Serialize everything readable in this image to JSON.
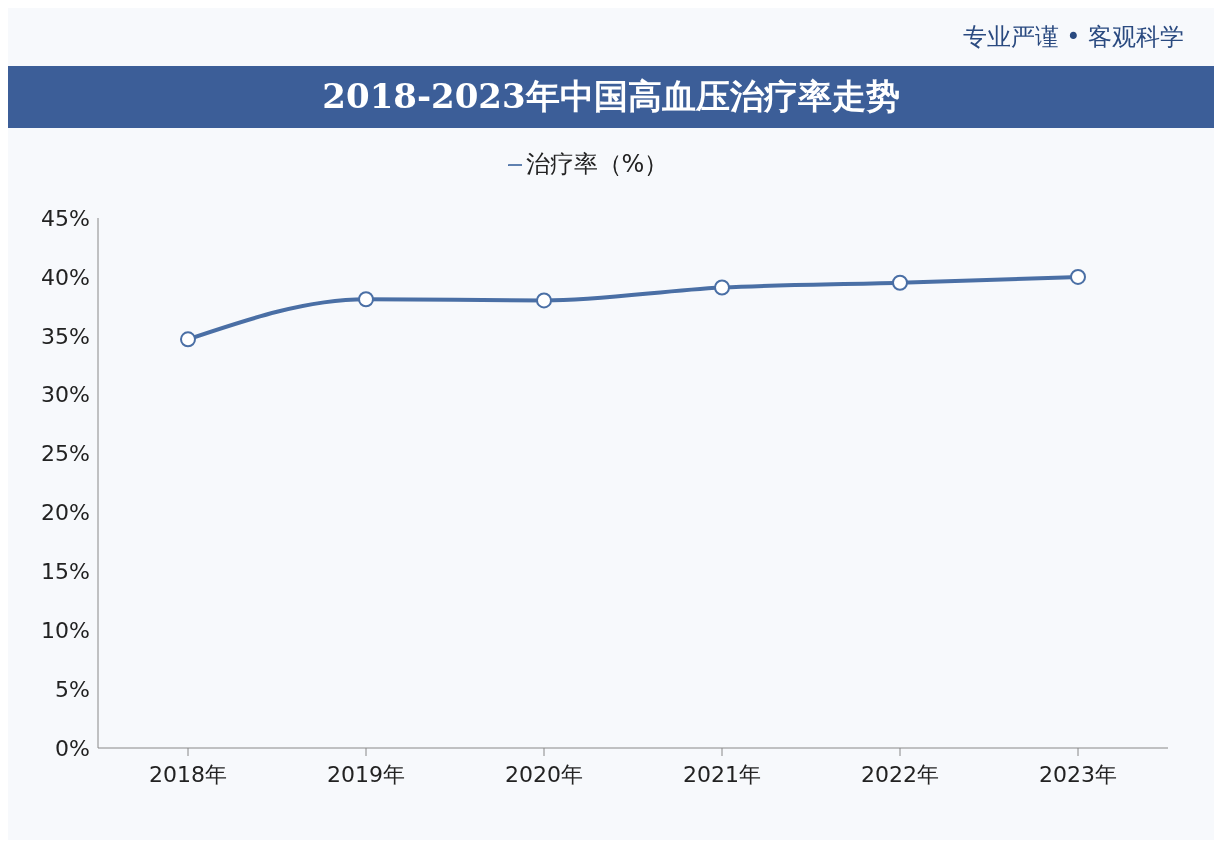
{
  "chart_data": {
    "type": "line",
    "title": "2018-2023年中国高血压治疗率走势",
    "annotations": [
      "专业严谨 • 客观科学"
    ],
    "categories": [
      "2018年",
      "2019年",
      "2020年",
      "2021年",
      "2022年",
      "2023年"
    ],
    "series": [
      {
        "name": "治疗率（%）",
        "color": "#4a6fa5",
        "values": [
          34.7,
          38.1,
          38.0,
          39.1,
          39.5,
          40.0
        ]
      }
    ],
    "ylim": [
      0,
      45
    ],
    "yticks": [
      {
        "value": 0,
        "label": "0%"
      },
      {
        "value": 5,
        "label": "5%"
      },
      {
        "value": 10,
        "label": "10%"
      },
      {
        "value": 15,
        "label": "15%"
      },
      {
        "value": 20,
        "label": "20%"
      },
      {
        "value": 25,
        "label": "25%"
      },
      {
        "value": 30,
        "label": "30%"
      },
      {
        "value": 35,
        "label": "35%"
      },
      {
        "value": 40,
        "label": "40%"
      },
      {
        "value": 45,
        "label": "45%"
      }
    ],
    "grid": false,
    "legend": "top",
    "marker": "circle",
    "line_style": "solid"
  }
}
